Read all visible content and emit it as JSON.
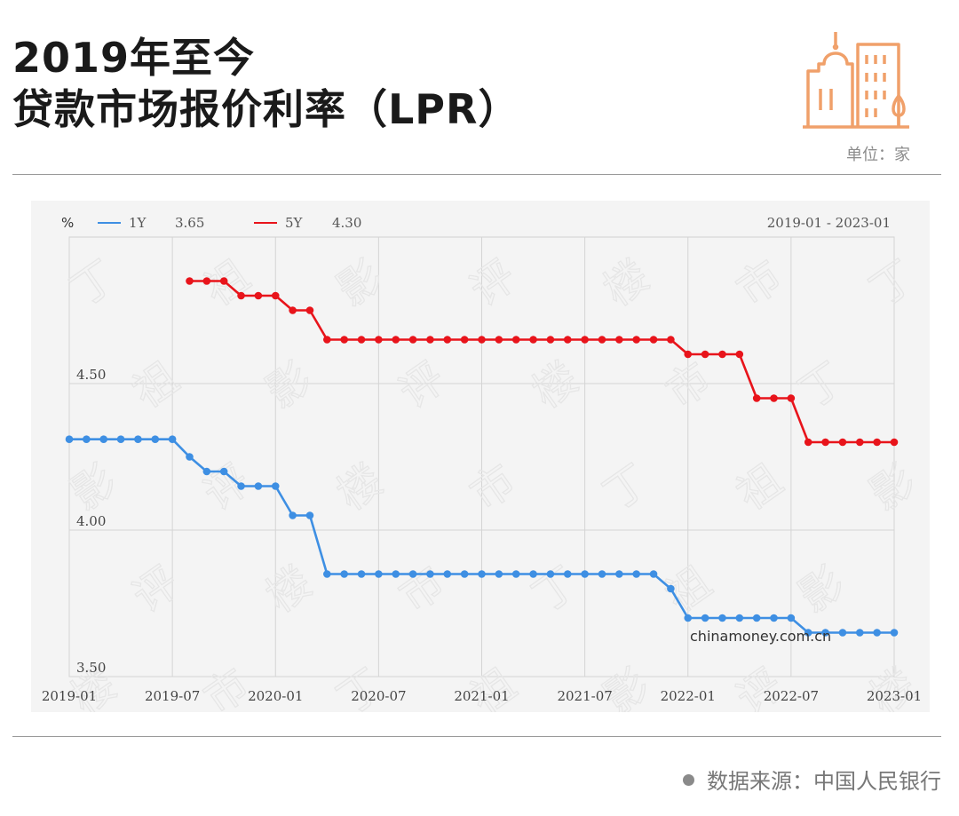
{
  "header": {
    "title_line1": "2019年至今",
    "title_line2": "贷款市场报价利率（LPR）",
    "unit": "单位：家",
    "logo_icon": "city-buildings-icon",
    "logo_color": "#f0a06a"
  },
  "footer": {
    "source": "数据来源：中国人民银行"
  },
  "watermark": "chinamoney.com.cn",
  "chart_data": {
    "type": "line",
    "ylabel": "%",
    "date_range": "2019-01 - 2023-01",
    "x_ticks": [
      "2019-01",
      "2019-07",
      "2020-01",
      "2020-07",
      "2021-01",
      "2021-07",
      "2022-01",
      "2022-07",
      "2023-01"
    ],
    "y_ticks": [
      "4.50",
      "4.00",
      "3.50"
    ],
    "ylim": [
      3.5,
      5.0
    ],
    "grid": true,
    "legend_position": "top-left",
    "series": [
      {
        "name": "1Y",
        "latest": "3.65",
        "color": "#3e8fe3",
        "points": [
          [
            "2019-01",
            4.31
          ],
          [
            "2019-02",
            4.31
          ],
          [
            "2019-03",
            4.31
          ],
          [
            "2019-04",
            4.31
          ],
          [
            "2019-05",
            4.31
          ],
          [
            "2019-06",
            4.31
          ],
          [
            "2019-07",
            4.31
          ],
          [
            "2019-08",
            4.25
          ],
          [
            "2019-09",
            4.2
          ],
          [
            "2019-10",
            4.2
          ],
          [
            "2019-11",
            4.15
          ],
          [
            "2019-12",
            4.15
          ],
          [
            "2020-01",
            4.15
          ],
          [
            "2020-02",
            4.05
          ],
          [
            "2020-03",
            4.05
          ],
          [
            "2020-04",
            3.85
          ],
          [
            "2020-05",
            3.85
          ],
          [
            "2020-06",
            3.85
          ],
          [
            "2020-07",
            3.85
          ],
          [
            "2020-08",
            3.85
          ],
          [
            "2020-09",
            3.85
          ],
          [
            "2020-10",
            3.85
          ],
          [
            "2020-11",
            3.85
          ],
          [
            "2020-12",
            3.85
          ],
          [
            "2021-01",
            3.85
          ],
          [
            "2021-02",
            3.85
          ],
          [
            "2021-03",
            3.85
          ],
          [
            "2021-04",
            3.85
          ],
          [
            "2021-05",
            3.85
          ],
          [
            "2021-06",
            3.85
          ],
          [
            "2021-07",
            3.85
          ],
          [
            "2021-08",
            3.85
          ],
          [
            "2021-09",
            3.85
          ],
          [
            "2021-10",
            3.85
          ],
          [
            "2021-11",
            3.85
          ],
          [
            "2021-12",
            3.8
          ],
          [
            "2022-01",
            3.7
          ],
          [
            "2022-02",
            3.7
          ],
          [
            "2022-03",
            3.7
          ],
          [
            "2022-04",
            3.7
          ],
          [
            "2022-05",
            3.7
          ],
          [
            "2022-06",
            3.7
          ],
          [
            "2022-07",
            3.7
          ],
          [
            "2022-08",
            3.65
          ],
          [
            "2022-09",
            3.65
          ],
          [
            "2022-10",
            3.65
          ],
          [
            "2022-11",
            3.65
          ],
          [
            "2022-12",
            3.65
          ],
          [
            "2023-01",
            3.65
          ]
        ]
      },
      {
        "name": "5Y",
        "latest": "4.30",
        "color": "#e8141b",
        "points": [
          [
            "2019-08",
            4.85
          ],
          [
            "2019-09",
            4.85
          ],
          [
            "2019-10",
            4.85
          ],
          [
            "2019-11",
            4.8
          ],
          [
            "2019-12",
            4.8
          ],
          [
            "2020-01",
            4.8
          ],
          [
            "2020-02",
            4.75
          ],
          [
            "2020-03",
            4.75
          ],
          [
            "2020-04",
            4.65
          ],
          [
            "2020-05",
            4.65
          ],
          [
            "2020-06",
            4.65
          ],
          [
            "2020-07",
            4.65
          ],
          [
            "2020-08",
            4.65
          ],
          [
            "2020-09",
            4.65
          ],
          [
            "2020-10",
            4.65
          ],
          [
            "2020-11",
            4.65
          ],
          [
            "2020-12",
            4.65
          ],
          [
            "2021-01",
            4.65
          ],
          [
            "2021-02",
            4.65
          ],
          [
            "2021-03",
            4.65
          ],
          [
            "2021-04",
            4.65
          ],
          [
            "2021-05",
            4.65
          ],
          [
            "2021-06",
            4.65
          ],
          [
            "2021-07",
            4.65
          ],
          [
            "2021-08",
            4.65
          ],
          [
            "2021-09",
            4.65
          ],
          [
            "2021-10",
            4.65
          ],
          [
            "2021-11",
            4.65
          ],
          [
            "2021-12",
            4.65
          ],
          [
            "2022-01",
            4.6
          ],
          [
            "2022-02",
            4.6
          ],
          [
            "2022-03",
            4.6
          ],
          [
            "2022-04",
            4.6
          ],
          [
            "2022-05",
            4.45
          ],
          [
            "2022-06",
            4.45
          ],
          [
            "2022-07",
            4.45
          ],
          [
            "2022-08",
            4.3
          ],
          [
            "2022-09",
            4.3
          ],
          [
            "2022-10",
            4.3
          ],
          [
            "2022-11",
            4.3
          ],
          [
            "2022-12",
            4.3
          ],
          [
            "2023-01",
            4.3
          ]
        ]
      }
    ]
  }
}
